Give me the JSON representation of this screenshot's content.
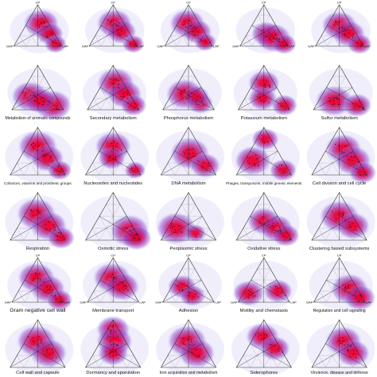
{
  "figure": {
    "axis_labels": {
      "top": "CP",
      "left": "GAP",
      "right": "LAP"
    },
    "colors": {
      "core": "#e8003c",
      "mid": "#c81e8c",
      "halo": "#8a5ad6",
      "fringe": "#d7cdf3",
      "point": "#111111"
    }
  },
  "chart_data": {
    "type": "scatter",
    "layout": "5x6 small multiples of ternary density plots",
    "panels": [
      {
        "title": "",
        "blobs": [
          [
            0.55,
            0.15,
            0.3,
            1.0
          ],
          [
            0.3,
            0.1,
            0.6,
            0.7
          ],
          [
            0.05,
            0.1,
            0.85,
            0.5
          ]
        ],
        "show_axis_labels": true
      },
      {
        "title": "",
        "blobs": [
          [
            0.55,
            0.2,
            0.25,
            1.0
          ],
          [
            0.35,
            0.15,
            0.5,
            0.8
          ],
          [
            0.05,
            0.05,
            0.9,
            0.5
          ]
        ],
        "show_axis_labels": true
      },
      {
        "title": "",
        "blobs": [
          [
            0.55,
            0.25,
            0.2,
            1.0
          ],
          [
            0.35,
            0.15,
            0.5,
            0.8
          ],
          [
            0.1,
            0.1,
            0.8,
            0.5
          ]
        ],
        "show_axis_labels": true
      },
      {
        "title": "",
        "blobs": [
          [
            0.3,
            0.3,
            0.4,
            0.8
          ],
          [
            0.2,
            0.2,
            0.6,
            1.0
          ],
          [
            0.05,
            0.05,
            0.9,
            0.6
          ]
        ],
        "show_axis_labels": true
      },
      {
        "title": "",
        "blobs": [
          [
            0.5,
            0.25,
            0.25,
            1.0
          ],
          [
            0.3,
            0.15,
            0.55,
            0.9
          ],
          [
            0.05,
            0.05,
            0.9,
            0.6
          ]
        ],
        "show_axis_labels": true
      },
      {
        "title": "Metabolism of aromatic compounds",
        "blobs": [
          [
            0.3,
            0.5,
            0.2,
            1.0
          ],
          [
            0.1,
            0.15,
            0.75,
            1.0
          ],
          [
            0.2,
            0.35,
            0.45,
            0.8
          ]
        ],
        "show_axis_labels": false
      },
      {
        "title": "Secondary metabolism",
        "blobs": [
          [
            0.6,
            0.15,
            0.25,
            1.0
          ],
          [
            0.35,
            0.1,
            0.55,
            0.9
          ],
          [
            0.1,
            0.05,
            0.85,
            0.6
          ]
        ],
        "show_axis_labels": false
      },
      {
        "title": "Phosphorus metabolism",
        "blobs": [
          [
            0.35,
            0.4,
            0.25,
            1.0
          ],
          [
            0.15,
            0.2,
            0.65,
            0.6
          ],
          [
            0.3,
            0.2,
            0.5,
            0.6
          ]
        ],
        "show_axis_labels": false
      },
      {
        "title": "Potassium metabolism",
        "blobs": [
          [
            0.6,
            0.2,
            0.2,
            0.8
          ],
          [
            0.25,
            0.4,
            0.35,
            0.7
          ],
          [
            0.1,
            0.05,
            0.85,
            0.6
          ]
        ],
        "show_axis_labels": false
      },
      {
        "title": "Sulfur metabolism",
        "blobs": [
          [
            0.2,
            0.5,
            0.3,
            1.0
          ],
          [
            0.1,
            0.1,
            0.8,
            0.7
          ]
        ],
        "show_axis_labels": false
      },
      {
        "title": "Cofactors, vitamins and prosthetic groups",
        "blobs": [
          [
            0.6,
            0.2,
            0.2,
            1.0
          ],
          [
            0.35,
            0.15,
            0.5,
            0.8
          ],
          [
            0.1,
            0.05,
            0.85,
            0.5
          ]
        ],
        "show_axis_labels": false
      },
      {
        "title": "Nucleosides and nucleotides",
        "blobs": [
          [
            0.6,
            0.2,
            0.2,
            0.9
          ],
          [
            0.35,
            0.35,
            0.3,
            0.6
          ],
          [
            0.1,
            0.05,
            0.85,
            0.4
          ]
        ],
        "show_axis_labels": false
      },
      {
        "title": "DNA metabolism",
        "blobs": [
          [
            0.45,
            0.25,
            0.3,
            1.0
          ],
          [
            0.2,
            0.1,
            0.7,
            0.7
          ]
        ],
        "show_axis_labels": false
      },
      {
        "title": "Phages, transposons, mobile genetic elements",
        "blobs": [
          [
            0.75,
            0.1,
            0.15,
            0.6
          ],
          [
            0.3,
            0.55,
            0.15,
            0.9
          ],
          [
            0.1,
            0.1,
            0.8,
            0.6
          ]
        ],
        "show_axis_labels": false
      },
      {
        "title": "Cell division and cell cycle",
        "blobs": [
          [
            0.55,
            0.15,
            0.3,
            0.9
          ],
          [
            0.3,
            0.1,
            0.6,
            0.9
          ],
          [
            0.05,
            0.05,
            0.9,
            0.6
          ]
        ],
        "show_axis_labels": false
      },
      {
        "title": "Respiration",
        "blobs": [
          [
            0.55,
            0.25,
            0.2,
            1.0
          ],
          [
            0.3,
            0.15,
            0.55,
            0.9
          ],
          [
            0.05,
            0.05,
            0.9,
            0.6
          ]
        ],
        "show_axis_labels": false
      },
      {
        "title": "Osmotic stress",
        "blobs": [
          [
            0.2,
            0.1,
            0.7,
            1.0
          ],
          [
            0.05,
            0.05,
            0.9,
            0.7
          ]
        ],
        "show_axis_labels": false
      },
      {
        "title": "Periplasmic stress",
        "blobs": [
          [
            0.25,
            0.6,
            0.15,
            1.0
          ],
          [
            0.15,
            0.3,
            0.55,
            0.4
          ]
        ],
        "show_axis_labels": false
      },
      {
        "title": "Oxidative stress",
        "blobs": [
          [
            0.4,
            0.3,
            0.3,
            0.8
          ],
          [
            0.25,
            0.15,
            0.6,
            0.8
          ],
          [
            0.1,
            0.05,
            0.85,
            0.6
          ]
        ],
        "show_axis_labels": false
      },
      {
        "title": "Clustering based subsystems",
        "blobs": [
          [
            0.5,
            0.25,
            0.25,
            1.0
          ],
          [
            0.3,
            0.1,
            0.6,
            0.8
          ]
        ],
        "show_axis_labels": false
      },
      {
        "title": "Gram negative cell wall",
        "blobs": [
          [
            0.55,
            0.25,
            0.2,
            1.0
          ],
          [
            0.3,
            0.15,
            0.55,
            0.9
          ],
          [
            0.05,
            0.05,
            0.9,
            0.6
          ]
        ],
        "show_axis_labels": true
      },
      {
        "title": "Membrane transport",
        "blobs": [
          [
            0.55,
            0.25,
            0.2,
            1.0
          ],
          [
            0.35,
            0.15,
            0.5,
            0.9
          ]
        ],
        "show_axis_labels": true
      },
      {
        "title": "Adhesion",
        "blobs": [
          [
            0.35,
            0.45,
            0.2,
            0.7
          ],
          [
            0.15,
            0.35,
            0.5,
            0.6
          ]
        ],
        "show_axis_labels": true
      },
      {
        "title": "Motility and chemotaxis",
        "blobs": [
          [
            0.2,
            0.7,
            0.1,
            0.8
          ],
          [
            0.25,
            0.1,
            0.65,
            0.7
          ]
        ],
        "show_axis_labels": true
      },
      {
        "title": "Regulation and cell signaling",
        "blobs": [
          [
            0.3,
            0.15,
            0.55,
            1.0
          ],
          [
            0.1,
            0.05,
            0.85,
            0.8
          ]
        ],
        "show_axis_labels": true
      },
      {
        "title": "Cell wall and capsule",
        "blobs": [
          [
            0.55,
            0.25,
            0.2,
            1.0
          ],
          [
            0.3,
            0.15,
            0.55,
            0.9
          ]
        ],
        "show_axis_labels": false
      },
      {
        "title": "Dormancy and sporulation",
        "blobs": [
          [
            0.8,
            0.1,
            0.1,
            0.8
          ],
          [
            0.55,
            0.2,
            0.25,
            0.9
          ],
          [
            0.3,
            0.35,
            0.35,
            0.7
          ]
        ],
        "show_axis_labels": false
      },
      {
        "title": "Iron acquisition and metabolism",
        "blobs": [
          [
            0.55,
            0.25,
            0.2,
            1.0
          ],
          [
            0.3,
            0.2,
            0.5,
            0.9
          ]
        ],
        "show_axis_labels": false
      },
      {
        "title": "Siderophores",
        "blobs": [
          [
            0.65,
            0.2,
            0.15,
            0.8
          ],
          [
            0.4,
            0.1,
            0.5,
            0.7
          ]
        ],
        "show_axis_labels": false
      },
      {
        "title": "Virulence, disease and defense",
        "blobs": [
          [
            0.55,
            0.15,
            0.3,
            0.9
          ],
          [
            0.3,
            0.1,
            0.6,
            0.8
          ]
        ],
        "show_axis_labels": false
      }
    ]
  }
}
